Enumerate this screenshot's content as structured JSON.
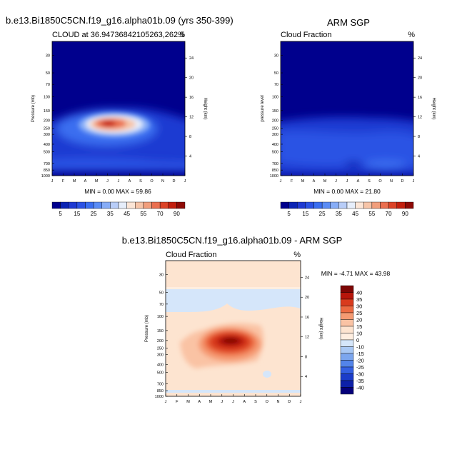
{
  "figure": {
    "top_title": "b.e13.Bi1850C5CN.f19_g16.alpha01b.09 (yrs 350-399)",
    "right_title": "ARM SGP",
    "diff_title": "b.e13.Bi1850C5CN.f19_g16.alpha01b.09 - ARM SGP"
  },
  "chart_data": [
    {
      "type": "heatmap",
      "panel": "model",
      "left_label": "CLOUD at 36.94736842105263,262.5",
      "units": "%",
      "ylabel": "Pressure (mb)",
      "y2label": "Height (km)",
      "months": [
        "J",
        "F",
        "M",
        "A",
        "M",
        "J",
        "J",
        "A",
        "S",
        "O",
        "N",
        "D",
        "J"
      ],
      "pressure_ticks": [
        30,
        50,
        70,
        100,
        150,
        200,
        250,
        300,
        400,
        500,
        700,
        850,
        1000
      ],
      "height_ticks": [
        4,
        8,
        12,
        16,
        20,
        24
      ],
      "ylim": [
        1000,
        20
      ],
      "stats": "MIN =   0.00 MAX =  59.86",
      "colorbar_labels": [
        "5",
        "15",
        "25",
        "35",
        "45",
        "55",
        "70",
        "90"
      ]
    },
    {
      "type": "heatmap",
      "panel": "obs",
      "left_label": "Cloud Fraction",
      "units": "%",
      "ylabel": "pressure level",
      "y2label": "Height (km)",
      "months": [
        "J",
        "F",
        "M",
        "A",
        "M",
        "J",
        "J",
        "A",
        "S",
        "O",
        "N",
        "D",
        "J"
      ],
      "pressure_ticks": [
        30,
        50,
        70,
        100,
        150,
        200,
        250,
        300,
        400,
        500,
        700,
        850,
        1000
      ],
      "height_ticks": [
        4,
        8,
        12,
        16,
        20,
        24
      ],
      "ylim": [
        1000,
        20
      ],
      "stats": "MIN =   0.00 MAX =  21.80",
      "colorbar_labels": [
        "5",
        "15",
        "25",
        "35",
        "45",
        "55",
        "70",
        "90"
      ]
    },
    {
      "type": "heatmap",
      "panel": "difference",
      "left_label": "Cloud Fraction",
      "units": "%",
      "ylabel": "Pressure (mb)",
      "y2label": "Height (km)",
      "months": [
        "J",
        "F",
        "M",
        "A",
        "M",
        "J",
        "J",
        "A",
        "S",
        "O",
        "N",
        "D",
        "J"
      ],
      "pressure_ticks": [
        30,
        50,
        70,
        100,
        150,
        200,
        250,
        300,
        400,
        500,
        700,
        850,
        1000
      ],
      "height_ticks": [
        4,
        8,
        12,
        16,
        20,
        24
      ],
      "ylim": [
        1000,
        20
      ],
      "stats": "MIN =  -4.71 MAX =  43.98",
      "colorbar_labels": [
        "40",
        "35",
        "30",
        "25",
        "20",
        "15",
        "10",
        "0",
        "-10",
        "-15",
        "-20",
        "-25",
        "-30",
        "-35",
        "-40"
      ]
    }
  ],
  "palettes": {
    "seq": [
      "#00008d",
      "#0b24b4",
      "#1f3ad2",
      "#2b52e4",
      "#3a6ef0",
      "#5a8cf5",
      "#87adf7",
      "#b8cdf8",
      "#e6eefb",
      "#fbe5d6",
      "#f6c4a8",
      "#f19e7c",
      "#ea6f4f",
      "#dc4327",
      "#c21f0e",
      "#8e0a06"
    ],
    "diff": [
      "#7d0605",
      "#b7150b",
      "#d93b1d",
      "#ec6a41",
      "#f59a72",
      "#fac3a4",
      "#fde4d0",
      "#ffeee0",
      "#d5e6fa",
      "#a9c8f4",
      "#7ca6ee",
      "#5384ea",
      "#3460e2",
      "#1b3cc9",
      "#0d20a8",
      "#05007a"
    ]
  }
}
